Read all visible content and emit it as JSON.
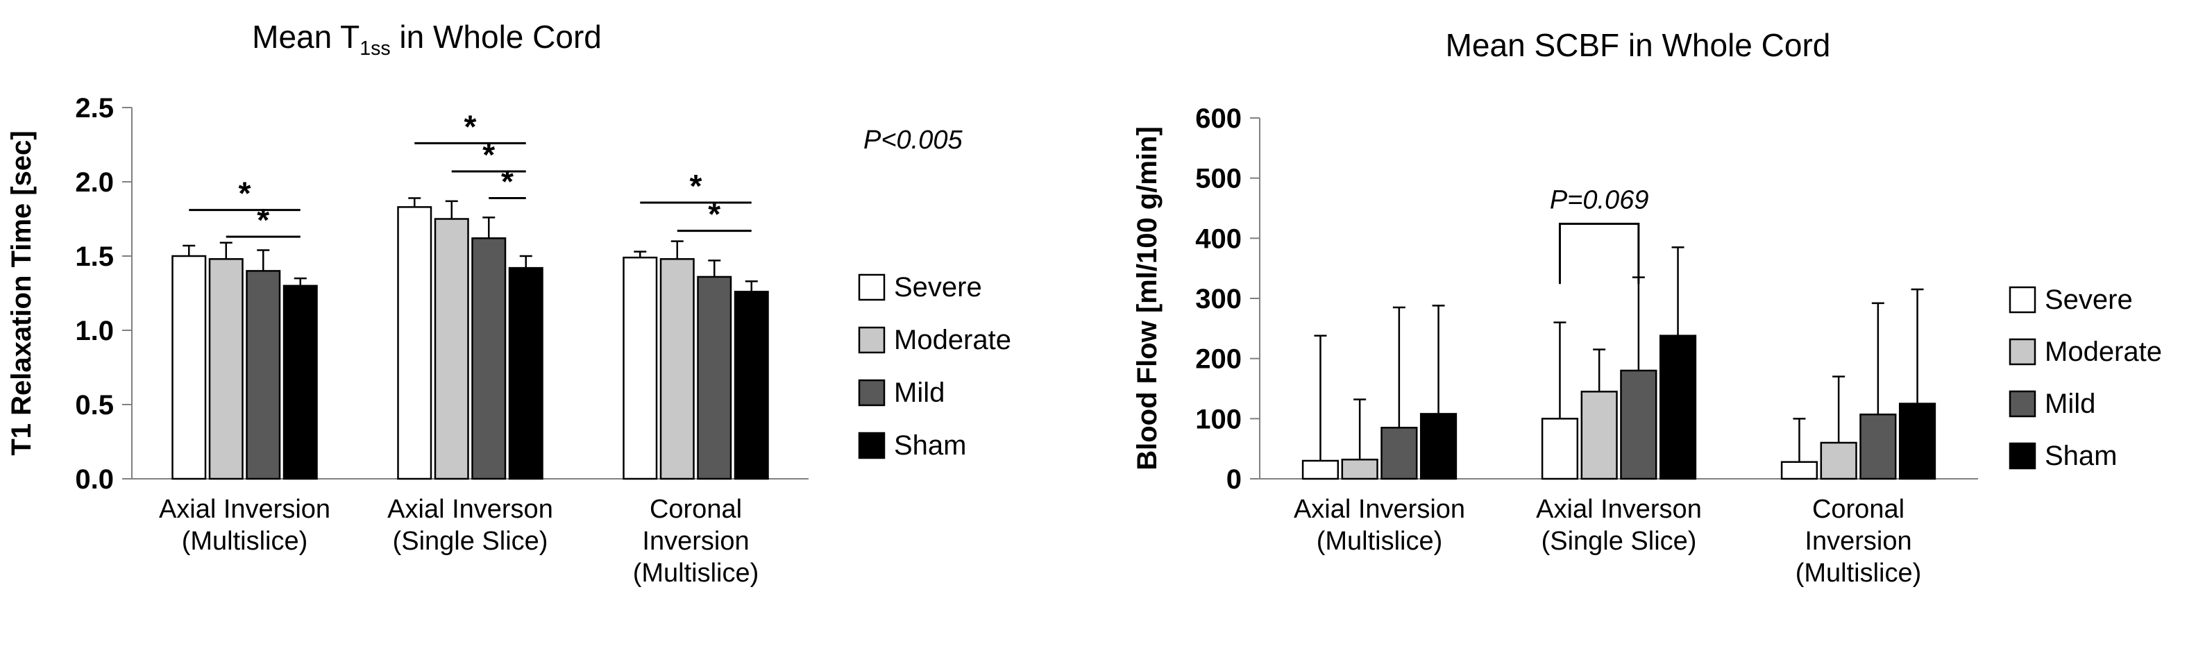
{
  "page": {
    "background": "#ffffff"
  },
  "chart_data": [
    {
      "type": "bar",
      "title": {
        "pre": "Mean T",
        "sub": "1ss",
        "post": " in Whole Cord"
      },
      "xlabel": "",
      "ylabel": "T1 Relaxation Time [sec]",
      "ylim": [
        0,
        2.5
      ],
      "yticks": [
        "0.0",
        "0.5",
        "1.0",
        "1.5",
        "2.0",
        "2.5"
      ],
      "grid": false,
      "legend_position": "right",
      "annotation": "P<0.005",
      "categories": [
        [
          "Axial Inversion",
          "(Multislice)"
        ],
        [
          "Axial Inverson",
          "(Single Slice)"
        ],
        [
          "Coronal",
          "Inversion",
          "(Multislice)"
        ]
      ],
      "series": [
        {
          "name": "Severe",
          "fill": "#ffffff",
          "values": [
            1.5,
            1.83,
            1.49
          ],
          "errors_up": [
            0.07,
            0.06,
            0.04
          ]
        },
        {
          "name": "Moderate",
          "fill": "#c8c8c8",
          "values": [
            1.48,
            1.75,
            1.48
          ],
          "errors_up": [
            0.11,
            0.12,
            0.12
          ]
        },
        {
          "name": "Mild",
          "fill": "#595959",
          "values": [
            1.4,
            1.62,
            1.36
          ],
          "errors_up": [
            0.14,
            0.14,
            0.11
          ]
        },
        {
          "name": "Sham",
          "fill": "#000000",
          "values": [
            1.3,
            1.42,
            1.26
          ],
          "errors_up": [
            0.05,
            0.08,
            0.07
          ]
        }
      ],
      "significance_lines": [
        {
          "group": 0,
          "from_bar": 0,
          "to_bar": 3,
          "y": 1.81,
          "label": "*"
        },
        {
          "group": 0,
          "from_bar": 1,
          "to_bar": 3,
          "y": 1.63,
          "label": "*"
        },
        {
          "group": 1,
          "from_bar": 0,
          "to_bar": 3,
          "y": 2.26,
          "label": "*"
        },
        {
          "group": 1,
          "from_bar": 1,
          "to_bar": 3,
          "y": 2.07,
          "label": "*"
        },
        {
          "group": 1,
          "from_bar": 2,
          "to_bar": 3,
          "y": 1.89,
          "label": "*"
        },
        {
          "group": 2,
          "from_bar": 0,
          "to_bar": 3,
          "y": 1.86,
          "label": "*"
        },
        {
          "group": 2,
          "from_bar": 1,
          "to_bar": 3,
          "y": 1.67,
          "label": "*"
        }
      ]
    },
    {
      "type": "bar",
      "title": {
        "pre": "Mean SCBF in Whole Cord",
        "sub": "",
        "post": ""
      },
      "xlabel": "",
      "ylabel": "Blood Flow [ml/100 g/min]",
      "ylim": [
        0,
        600
      ],
      "yticks": [
        "0",
        "100",
        "200",
        "300",
        "400",
        "500",
        "600"
      ],
      "grid": false,
      "legend_position": "right",
      "annotation": "P=0.069",
      "categories": [
        [
          "Axial Inversion",
          "(Multislice)"
        ],
        [
          "Axial Inverson",
          "(Single Slice)"
        ],
        [
          "Coronal",
          "Inversion",
          "(Multislice)"
        ]
      ],
      "series": [
        {
          "name": "Severe",
          "fill": "#ffffff",
          "values": [
            30,
            100,
            28
          ],
          "errors_up": [
            208,
            160,
            72
          ]
        },
        {
          "name": "Moderate",
          "fill": "#c8c8c8",
          "values": [
            32,
            145,
            60
          ],
          "errors_up": [
            100,
            70,
            110
          ]
        },
        {
          "name": "Mild",
          "fill": "#595959",
          "values": [
            85,
            180,
            107
          ],
          "errors_up": [
            200,
            155,
            185
          ]
        },
        {
          "name": "Sham",
          "fill": "#000000",
          "values": [
            108,
            238,
            125
          ],
          "errors_up": [
            180,
            147,
            190
          ]
        }
      ],
      "bracket": {
        "group": 1,
        "from_bar": 0,
        "to_bar": 2,
        "y": 424,
        "drop": 100
      }
    }
  ]
}
